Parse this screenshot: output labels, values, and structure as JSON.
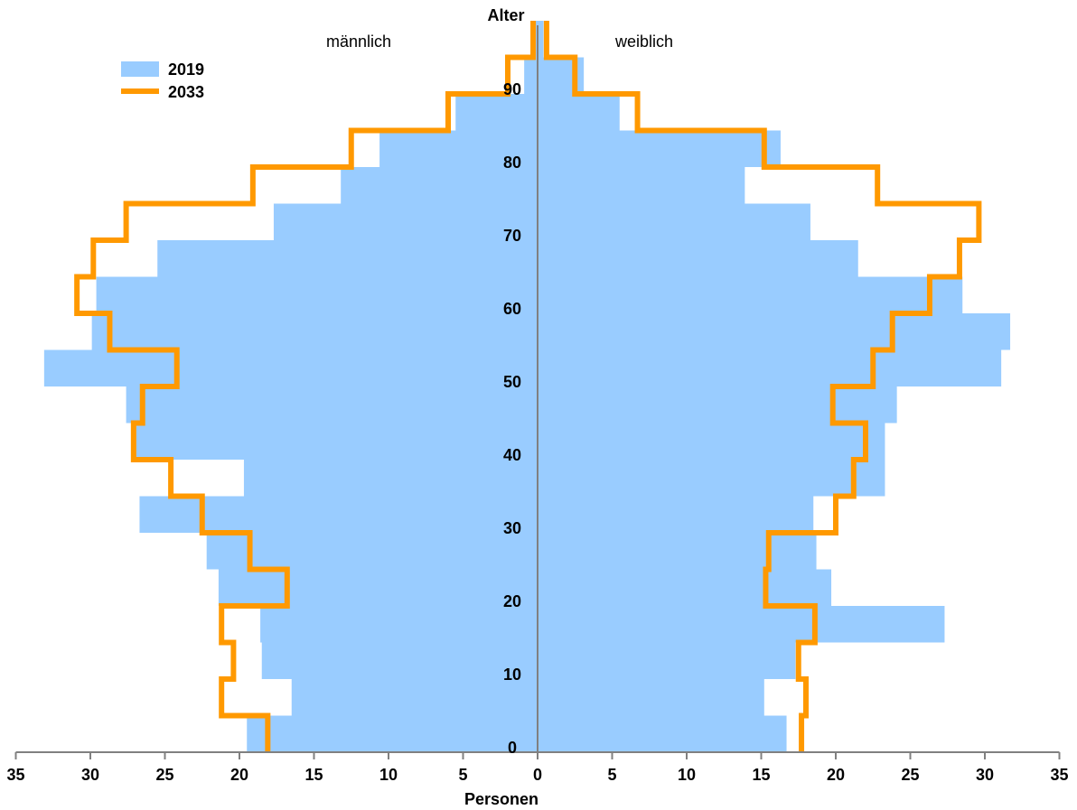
{
  "chart_data": {
    "type": "population-pyramid",
    "y_axis_title": "Alter",
    "x_axis_title": "Personen",
    "left_label": "männlich",
    "right_label": "weiblich",
    "x_ticks": [
      "35",
      "30",
      "25",
      "20",
      "15",
      "10",
      "5",
      "0",
      "5",
      "10",
      "15",
      "20",
      "25",
      "30",
      "35"
    ],
    "y_ticks": [
      "0",
      "10",
      "20",
      "30",
      "40",
      "50",
      "60",
      "70",
      "80",
      "90"
    ],
    "xlim": [
      -35,
      35
    ],
    "ylim": [
      0,
      100
    ],
    "age_groups": [
      "0-4",
      "5-9",
      "10-14",
      "15-19",
      "20-24",
      "25-29",
      "30-34",
      "35-39",
      "40-44",
      "45-49",
      "50-54",
      "55-59",
      "60-64",
      "65-69",
      "70-74",
      "75-79",
      "80-84",
      "85-89",
      "90-94",
      "95+"
    ],
    "series": [
      {
        "name": "2019",
        "color": "#99ccff",
        "style": "bars",
        "male": [
          19.5,
          16.5,
          18.5,
          18.6,
          21.4,
          22.2,
          26.7,
          19.7,
          27.2,
          27.6,
          33.1,
          29.9,
          29.6,
          25.5,
          17.7,
          13.2,
          10.6,
          5.5,
          0.9,
          0.3
        ],
        "female": [
          16.7,
          15.2,
          17.3,
          27.3,
          19.7,
          18.7,
          18.5,
          23.3,
          23.3,
          24.1,
          31.1,
          31.7,
          28.5,
          21.5,
          18.3,
          13.9,
          16.3,
          5.5,
          3.1,
          0.4
        ]
      },
      {
        "name": "2033",
        "color": "#ff9900",
        "style": "step-line",
        "male": [
          18.1,
          21.2,
          20.4,
          21.2,
          16.8,
          19.3,
          22.5,
          24.6,
          27.1,
          26.5,
          24.2,
          28.7,
          30.9,
          29.8,
          27.6,
          19.1,
          12.5,
          6.0,
          2.0,
          0.3
        ],
        "female": [
          17.7,
          18.0,
          17.5,
          18.6,
          15.3,
          15.5,
          20.0,
          21.2,
          22.0,
          19.8,
          22.5,
          23.8,
          26.3,
          28.3,
          29.6,
          22.8,
          15.2,
          6.7,
          2.5,
          0.6
        ]
      }
    ],
    "legend": {
      "placement": "top-left",
      "entries": [
        "2019",
        "2033"
      ]
    }
  }
}
